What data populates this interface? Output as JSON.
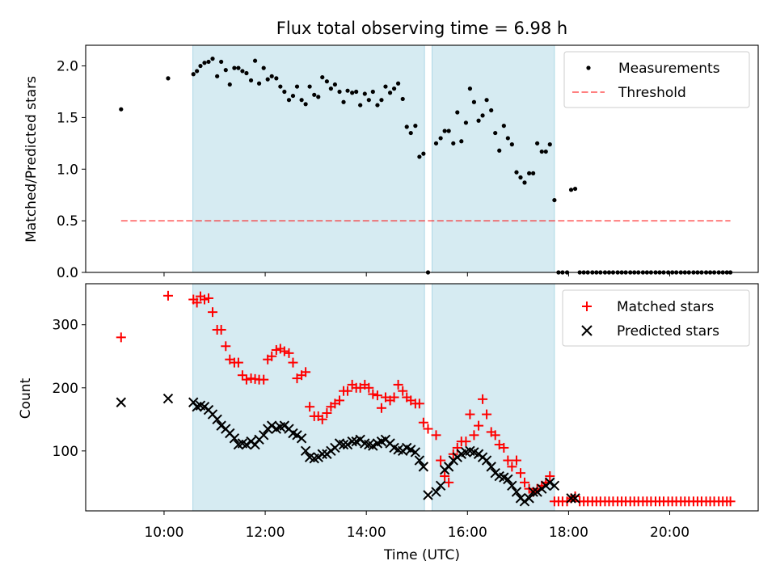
{
  "title": "Flux total observing time = 6.98 h",
  "colors": {
    "shade": "#add8e6",
    "measure": "#000000",
    "threshold": "#ff0000",
    "matched": "#ff0000",
    "predicted": "#000000"
  },
  "chart_data": [
    {
      "type": "scatter",
      "panel": "top",
      "ylabel": "Matched/Predicted stars",
      "ylim": [
        0,
        2.2
      ],
      "yticks": [
        0.0,
        0.5,
        1.0,
        1.5,
        2.0
      ],
      "ytick_labels": [
        "0.0",
        "0.5",
        "1.0",
        "1.5",
        "2.0"
      ],
      "legend_position": "upper right",
      "threshold": {
        "name": "Threshold",
        "value": 0.5,
        "x_start": 9.15,
        "x_end": 21.2
      },
      "shaded_intervals": [
        [
          10.57,
          15.15
        ],
        [
          15.3,
          17.72
        ]
      ],
      "series": [
        {
          "name": "Measurements",
          "x": [
            9.15,
            10.08,
            10.58,
            10.65,
            10.72,
            10.8,
            10.88,
            10.96,
            11.05,
            11.13,
            11.22,
            11.3,
            11.39,
            11.47,
            11.55,
            11.63,
            11.72,
            11.8,
            11.88,
            11.97,
            12.05,
            12.13,
            12.22,
            12.3,
            12.38,
            12.47,
            12.55,
            12.63,
            12.72,
            12.8,
            12.88,
            12.97,
            13.05,
            13.13,
            13.22,
            13.3,
            13.38,
            13.47,
            13.55,
            13.63,
            13.72,
            13.8,
            13.88,
            13.97,
            14.05,
            14.13,
            14.22,
            14.3,
            14.38,
            14.47,
            14.55,
            14.63,
            14.72,
            14.8,
            14.88,
            14.97,
            15.05,
            15.13,
            15.22,
            15.38,
            15.47,
            15.55,
            15.63,
            15.72,
            15.8,
            15.88,
            15.97,
            16.05,
            16.13,
            16.22,
            16.3,
            16.38,
            16.47,
            16.55,
            16.63,
            16.72,
            16.8,
            16.88,
            16.97,
            17.05,
            17.13,
            17.22,
            17.3,
            17.38,
            17.47,
            17.55,
            17.63,
            17.72,
            17.8,
            17.88,
            17.97,
            18.05,
            18.13,
            18.22,
            18.3,
            18.38,
            18.47,
            18.55,
            18.63,
            18.72,
            18.8,
            18.88,
            18.97,
            19.05,
            19.13,
            19.22,
            19.3,
            19.38,
            19.47,
            19.55,
            19.63,
            19.72,
            19.8,
            19.88,
            19.97,
            20.05,
            20.13,
            20.22,
            20.3,
            20.38,
            20.47,
            20.55,
            20.63,
            20.72,
            20.8,
            20.88,
            20.97,
            21.05,
            21.13,
            21.2
          ],
          "y": [
            1.58,
            1.88,
            1.92,
            1.95,
            2.0,
            2.03,
            2.04,
            2.07,
            1.9,
            2.04,
            1.96,
            1.82,
            1.98,
            1.98,
            1.95,
            1.93,
            1.86,
            2.05,
            1.83,
            1.98,
            1.87,
            1.9,
            1.88,
            1.8,
            1.75,
            1.67,
            1.71,
            1.8,
            1.67,
            1.63,
            1.8,
            1.72,
            1.7,
            1.89,
            1.85,
            1.78,
            1.82,
            1.75,
            1.65,
            1.76,
            1.74,
            1.75,
            1.62,
            1.73,
            1.67,
            1.75,
            1.62,
            1.67,
            1.8,
            1.74,
            1.78,
            1.83,
            1.68,
            1.41,
            1.35,
            1.42,
            1.12,
            1.15,
            0.0,
            1.25,
            1.3,
            1.37,
            1.37,
            1.25,
            1.55,
            1.27,
            1.45,
            1.78,
            1.65,
            1.47,
            1.52,
            1.67,
            1.57,
            1.35,
            1.18,
            1.42,
            1.3,
            1.24,
            0.97,
            0.92,
            0.87,
            0.96,
            0.96,
            1.25,
            1.17,
            1.17,
            1.24,
            0.7,
            0.0,
            0.0,
            0.0,
            0.8,
            0.81,
            0.0,
            0.0,
            0.0,
            0.0,
            0.0,
            0.0,
            0.0,
            0.0,
            0.0,
            0.0,
            0.0,
            0.0,
            0.0,
            0.0,
            0.0,
            0.0,
            0.0,
            0.0,
            0.0,
            0.0,
            0.0,
            0.0,
            0.0,
            0.0,
            0.0,
            0.0,
            0.0,
            0.0,
            0.0,
            0.0,
            0.0,
            0.0,
            0.0,
            0.0,
            0.0,
            0.0,
            0.0
          ]
        }
      ]
    },
    {
      "type": "scatter",
      "panel": "bottom",
      "xlabel": "Time (UTC)",
      "ylabel": "Count",
      "ylim": [
        5,
        365
      ],
      "yticks": [
        100,
        200,
        300
      ],
      "ytick_labels": [
        "100",
        "200",
        "300"
      ],
      "xlim": [
        8.45,
        21.75
      ],
      "xticks": [
        10,
        12,
        14,
        16,
        18,
        20
      ],
      "xtick_labels": [
        "10:00",
        "12:00",
        "14:00",
        "16:00",
        "18:00",
        "20:00"
      ],
      "legend_position": "upper right",
      "shaded_intervals": [
        [
          10.57,
          15.15
        ],
        [
          15.3,
          17.72
        ]
      ],
      "series": [
        {
          "name": "Matched stars",
          "marker": "plus",
          "x": [
            9.15,
            10.08,
            10.58,
            10.65,
            10.72,
            10.8,
            10.88,
            10.96,
            11.05,
            11.13,
            11.22,
            11.3,
            11.39,
            11.47,
            11.55,
            11.63,
            11.72,
            11.8,
            11.88,
            11.97,
            12.05,
            12.13,
            12.22,
            12.3,
            12.38,
            12.47,
            12.55,
            12.63,
            12.72,
            12.8,
            12.88,
            12.97,
            13.05,
            13.13,
            13.22,
            13.3,
            13.38,
            13.47,
            13.55,
            13.63,
            13.72,
            13.8,
            13.88,
            13.97,
            14.05,
            14.13,
            14.22,
            14.3,
            14.38,
            14.47,
            14.55,
            14.63,
            14.72,
            14.8,
            14.88,
            14.97,
            15.05,
            15.13,
            15.22,
            15.38,
            15.47,
            15.55,
            15.63,
            15.72,
            15.8,
            15.88,
            15.97,
            16.05,
            16.13,
            16.22,
            16.3,
            16.38,
            16.47,
            16.55,
            16.63,
            16.72,
            16.8,
            16.88,
            16.97,
            17.05,
            17.13,
            17.22,
            17.3,
            17.38,
            17.47,
            17.55,
            17.63,
            17.72,
            17.8,
            17.88,
            17.97,
            18.05,
            18.13,
            18.22,
            18.3,
            18.38,
            18.47,
            18.55,
            18.63,
            18.72,
            18.8,
            18.88,
            18.97,
            19.05,
            19.13,
            19.22,
            19.3,
            19.38,
            19.47,
            19.55,
            19.63,
            19.72,
            19.8,
            19.88,
            19.97,
            20.05,
            20.13,
            20.22,
            20.3,
            20.38,
            20.47,
            20.55,
            20.63,
            20.72,
            20.8,
            20.88,
            20.97,
            21.05,
            21.13,
            21.2
          ],
          "y": [
            280,
            346,
            340,
            335,
            345,
            340,
            342,
            320,
            292,
            292,
            266,
            245,
            240,
            240,
            220,
            213,
            215,
            214,
            213,
            213,
            245,
            250,
            260,
            262,
            258,
            255,
            240,
            215,
            220,
            225,
            170,
            155,
            155,
            150,
            160,
            170,
            175,
            180,
            195,
            195,
            205,
            200,
            200,
            205,
            200,
            190,
            188,
            168,
            185,
            180,
            185,
            205,
            195,
            185,
            180,
            175,
            175,
            145,
            135,
            125,
            85,
            60,
            50,
            95,
            105,
            115,
            115,
            158,
            125,
            140,
            182,
            158,
            130,
            125,
            110,
            105,
            85,
            75,
            85,
            65,
            50,
            40,
            35,
            40,
            45,
            50,
            60,
            20,
            20,
            20,
            20,
            25,
            28,
            20,
            20,
            20,
            20,
            20,
            20,
            20,
            20,
            20,
            20,
            20,
            20,
            20,
            20,
            20,
            20,
            20,
            20,
            20,
            20,
            20,
            20,
            20,
            20,
            20,
            20,
            20,
            20,
            20,
            20,
            20,
            20,
            20,
            20,
            20,
            20,
            20
          ]
        },
        {
          "name": "Predicted stars",
          "marker": "x",
          "x": [
            9.15,
            10.08,
            10.58,
            10.65,
            10.72,
            10.8,
            10.88,
            10.96,
            11.05,
            11.13,
            11.22,
            11.3,
            11.39,
            11.47,
            11.55,
            11.63,
            11.72,
            11.8,
            11.88,
            11.97,
            12.05,
            12.13,
            12.22,
            12.3,
            12.38,
            12.47,
            12.55,
            12.63,
            12.72,
            12.8,
            12.88,
            12.97,
            13.05,
            13.13,
            13.22,
            13.3,
            13.38,
            13.47,
            13.55,
            13.63,
            13.72,
            13.8,
            13.88,
            13.97,
            14.05,
            14.13,
            14.22,
            14.3,
            14.38,
            14.47,
            14.55,
            14.63,
            14.72,
            14.8,
            14.88,
            14.97,
            15.05,
            15.13,
            15.22,
            15.38,
            15.47,
            15.55,
            15.63,
            15.72,
            15.8,
            15.88,
            15.97,
            16.05,
            16.13,
            16.22,
            16.3,
            16.38,
            16.47,
            16.55,
            16.63,
            16.72,
            16.8,
            16.88,
            16.97,
            17.05,
            17.13,
            17.22,
            17.3,
            17.38,
            17.47,
            17.55,
            17.63,
            17.72,
            18.05,
            18.13
          ],
          "y": [
            177,
            183,
            177,
            170,
            172,
            170,
            165,
            158,
            150,
            140,
            135,
            128,
            120,
            110,
            112,
            110,
            115,
            110,
            118,
            125,
            135,
            140,
            135,
            138,
            140,
            135,
            128,
            125,
            120,
            100,
            90,
            88,
            90,
            95,
            95,
            100,
            105,
            112,
            110,
            110,
            115,
            115,
            118,
            112,
            110,
            108,
            112,
            115,
            118,
            112,
            105,
            102,
            100,
            105,
            102,
            98,
            85,
            75,
            30,
            35,
            45,
            70,
            75,
            85,
            90,
            95,
            98,
            100,
            98,
            95,
            90,
            85,
            75,
            65,
            60,
            58,
            55,
            45,
            35,
            25,
            20,
            25,
            35,
            35,
            40,
            45,
            50,
            45,
            25,
            25
          ]
        }
      ]
    }
  ]
}
